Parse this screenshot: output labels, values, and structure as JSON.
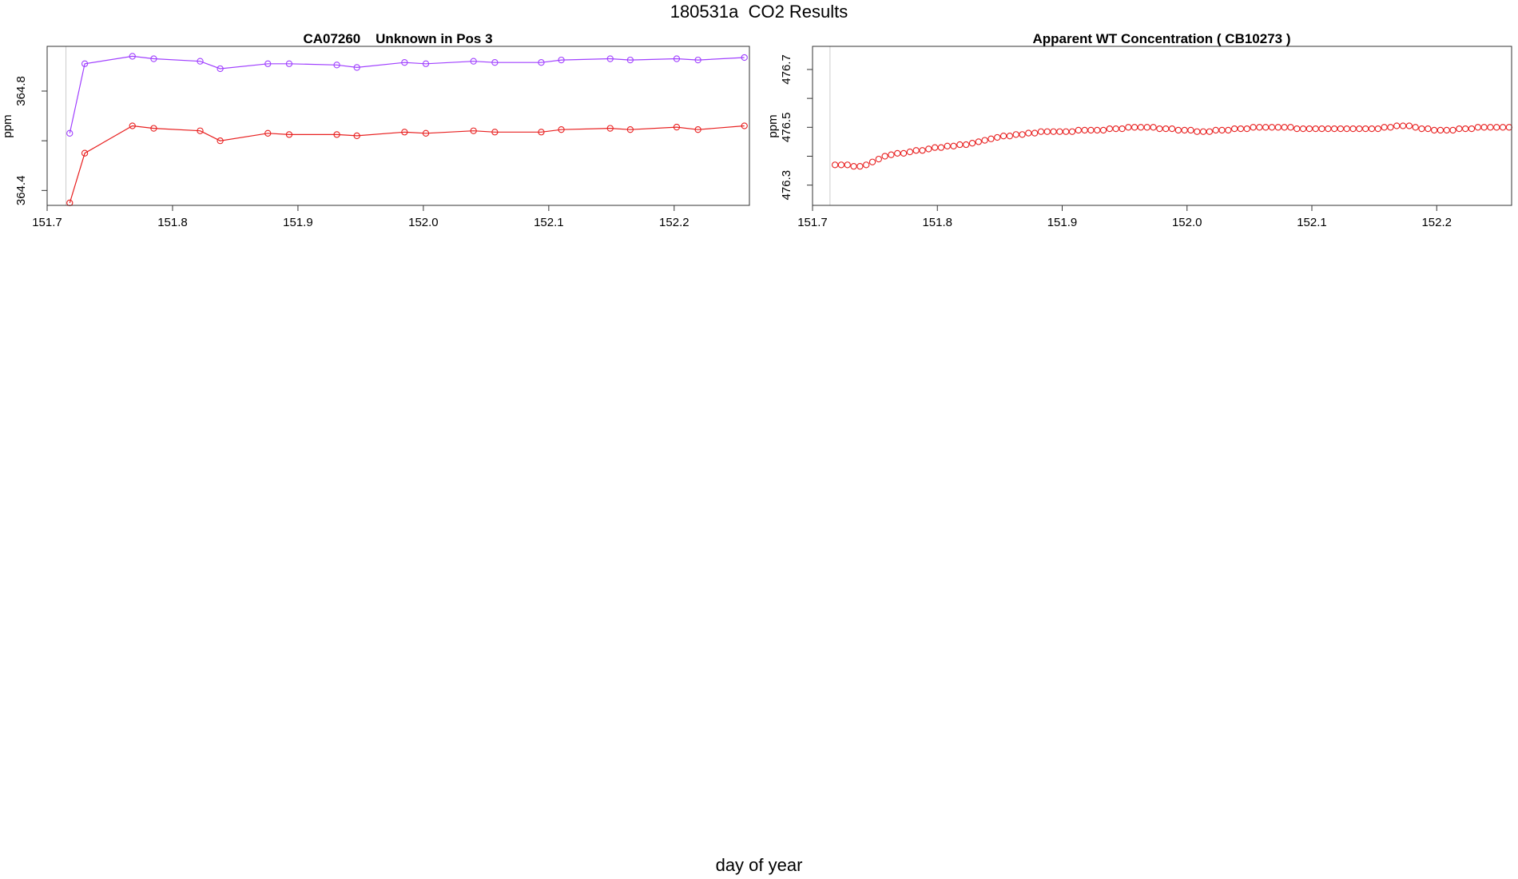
{
  "page": {
    "title": "180531a  CO2 Results",
    "xlabel": "day of year"
  },
  "chart_data": [
    {
      "type": "line",
      "title": "CA07260    Unknown in Pos 3",
      "xlabel": "",
      "ylabel": "ppm",
      "xlim": [
        151.7,
        152.26
      ],
      "ylim": [
        364.34,
        364.98
      ],
      "xticks": [
        "151.7",
        "151.8",
        "151.9",
        "152.0",
        "152.1",
        "152.2"
      ],
      "yticks": [
        "364.4",
        "364.8"
      ],
      "ytick_minor": [
        364.6
      ],
      "vlines": [
        151.715,
        152.26
      ],
      "grid": false,
      "series": [
        {
          "color": "#a040ff",
          "marker": "circle",
          "x": [
            151.718,
            151.73,
            151.768,
            151.785,
            151.822,
            151.838,
            151.876,
            151.893,
            151.931,
            151.947,
            151.985,
            152.002,
            152.04,
            152.057,
            152.094,
            152.11,
            152.149,
            152.165,
            152.202,
            152.219,
            152.256
          ],
          "y": [
            364.63,
            364.91,
            364.94,
            364.93,
            364.92,
            364.89,
            364.91,
            364.91,
            364.905,
            364.895,
            364.915,
            364.91,
            364.92,
            364.915,
            364.915,
            364.925,
            364.93,
            364.925,
            364.93,
            364.925,
            364.935
          ]
        },
        {
          "color": "#e82020",
          "marker": "circle",
          "x": [
            151.718,
            151.73,
            151.768,
            151.785,
            151.822,
            151.838,
            151.876,
            151.893,
            151.931,
            151.947,
            151.985,
            152.002,
            152.04,
            152.057,
            152.094,
            152.11,
            152.149,
            152.165,
            152.202,
            152.219,
            152.256
          ],
          "y": [
            364.35,
            364.55,
            364.66,
            364.65,
            364.64,
            364.6,
            364.63,
            364.625,
            364.625,
            364.62,
            364.635,
            364.63,
            364.64,
            364.635,
            364.635,
            364.645,
            364.65,
            364.645,
            364.655,
            364.645,
            364.66
          ]
        }
      ]
    },
    {
      "type": "scatter",
      "title": "Apparent WT Concentration ( CB10273 )",
      "xlabel": "",
      "ylabel": "ppm",
      "xlim": [
        151.7,
        152.26
      ],
      "ylim": [
        476.23,
        476.78
      ],
      "xticks": [
        "151.7",
        "151.8",
        "151.9",
        "152.0",
        "152.1",
        "152.2"
      ],
      "yticks": [
        "476.3",
        "476.5",
        "476.7"
      ],
      "ytick_minor": [
        476.4,
        476.6
      ],
      "vlines": [
        151.714,
        152.26
      ],
      "grid": false,
      "series": [
        {
          "color": "#e82020",
          "marker": "circle",
          "x": [
            151.718,
            151.723,
            151.728,
            151.733,
            151.738,
            151.743,
            151.748,
            151.753,
            151.758,
            151.763,
            151.768,
            151.773,
            151.778,
            151.783,
            151.788,
            151.793,
            151.798,
            151.803,
            151.808,
            151.813,
            151.818,
            151.823,
            151.828,
            151.833,
            151.838,
            151.843,
            151.848,
            151.853,
            151.858,
            151.863,
            151.868,
            151.873,
            151.878,
            151.883,
            151.888,
            151.893,
            151.898,
            151.903,
            151.908,
            151.913,
            151.918,
            151.923,
            151.928,
            151.933,
            151.938,
            151.943,
            151.948,
            151.953,
            151.958,
            151.963,
            151.968,
            151.973,
            151.978,
            151.983,
            151.988,
            151.993,
            151.998,
            152.003,
            152.008,
            152.013,
            152.018,
            152.023,
            152.028,
            152.033,
            152.038,
            152.043,
            152.048,
            152.053,
            152.058,
            152.063,
            152.068,
            152.073,
            152.078,
            152.083,
            152.088,
            152.093,
            152.098,
            152.103,
            152.108,
            152.113,
            152.118,
            152.123,
            152.128,
            152.133,
            152.138,
            152.143,
            152.148,
            152.153,
            152.158,
            152.163,
            152.168,
            152.173,
            152.178,
            152.183,
            152.188,
            152.193,
            152.198,
            152.203,
            152.208,
            152.213,
            152.218,
            152.223,
            152.228,
            152.233,
            152.238,
            152.243,
            152.248,
            152.253,
            152.258
          ],
          "y": [
            476.37,
            476.37,
            476.37,
            476.365,
            476.365,
            476.37,
            476.38,
            476.39,
            476.4,
            476.405,
            476.41,
            476.41,
            476.415,
            476.42,
            476.42,
            476.425,
            476.43,
            476.43,
            476.435,
            476.435,
            476.44,
            476.44,
            476.445,
            476.45,
            476.455,
            476.46,
            476.465,
            476.47,
            476.47,
            476.475,
            476.475,
            476.48,
            476.48,
            476.485,
            476.485,
            476.485,
            476.485,
            476.485,
            476.485,
            476.49,
            476.49,
            476.49,
            476.49,
            476.49,
            476.495,
            476.495,
            476.495,
            476.5,
            476.5,
            476.5,
            476.5,
            476.5,
            476.495,
            476.495,
            476.495,
            476.49,
            476.49,
            476.49,
            476.485,
            476.485,
            476.485,
            476.49,
            476.49,
            476.49,
            476.495,
            476.495,
            476.495,
            476.5,
            476.5,
            476.5,
            476.5,
            476.5,
            476.5,
            476.5,
            476.495,
            476.495,
            476.495,
            476.495,
            476.495,
            476.495,
            476.495,
            476.495,
            476.495,
            476.495,
            476.495,
            476.495,
            476.495,
            476.495,
            476.5,
            476.5,
            476.505,
            476.505,
            476.505,
            476.5,
            476.495,
            476.495,
            476.49,
            476.49,
            476.49,
            476.49,
            476.495,
            476.495,
            476.495,
            476.5,
            476.5,
            476.5,
            476.5,
            476.5,
            476.5
          ]
        }
      ]
    }
  ]
}
